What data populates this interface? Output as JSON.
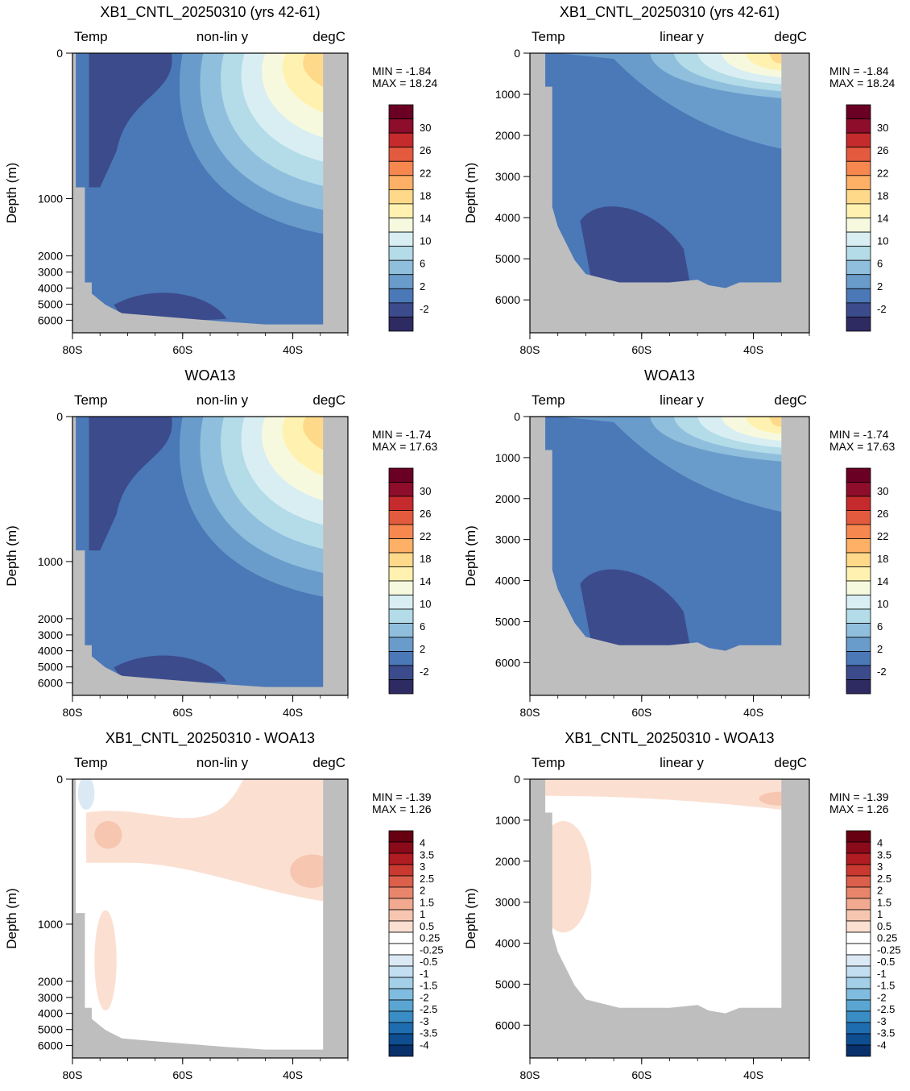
{
  "layout_note": "",
  "colors": {
    "land": "#bebebe",
    "temp_ramp": [
      "#2e2a62",
      "#3c4b8c",
      "#4b78b7",
      "#6a9ccb",
      "#8fbfdc",
      "#b3dbe8",
      "#d8eef2",
      "#f7f9df",
      "#fff2b0",
      "#ffd98a",
      "#fdb066",
      "#f6874f",
      "#e45a3e",
      "#c52b2d",
      "#8e0d2b",
      "#6b0025"
    ],
    "diff_ramp": [
      "#08306b",
      "#0e4d8f",
      "#1f6db1",
      "#3a8cc4",
      "#5aa5d2",
      "#80bce0",
      "#a3cfe8",
      "#c2def0",
      "#dbe9f5",
      "#ffffff",
      "#ffffff",
      "#fbe0d2",
      "#f6c6b0",
      "#f1a98f",
      "#e8866c",
      "#db5f4a",
      "#c9392f",
      "#b01c22",
      "#8a0a1a",
      "#670010"
    ]
  },
  "panels": [
    {
      "title": "XB1_CNTL_20250310 (yrs 42-61)",
      "left_label": "Temp",
      "center_label": "non-lin y",
      "right_label": "degC",
      "min_text": "MIN = -1.84",
      "max_text": "MAX = 18.24",
      "ylabel": "Depth (m)"
    },
    {
      "title": "XB1_CNTL_20250310 (yrs 42-61)",
      "left_label": "Temp",
      "center_label": "linear y",
      "right_label": "degC",
      "min_text": "MIN = -1.84",
      "max_text": "MAX = 18.24",
      "ylabel": "Depth (m)"
    },
    {
      "title": "WOA13",
      "left_label": "Temp",
      "center_label": "non-lin y",
      "right_label": "degC",
      "min_text": "MIN = -1.74",
      "max_text": "MAX = 17.63",
      "ylabel": "Depth (m)"
    },
    {
      "title": "WOA13",
      "left_label": "Temp",
      "center_label": "linear y",
      "right_label": "degC",
      "min_text": "MIN = -1.74",
      "max_text": "MAX = 17.63",
      "ylabel": "Depth (m)"
    },
    {
      "title": "XB1_CNTL_20250310 - WOA13",
      "left_label": "Temp",
      "center_label": "non-lin y",
      "right_label": "degC",
      "min_text": "MIN = -1.39",
      "max_text": "MAX =  1.26",
      "ylabel": "Depth (m)"
    },
    {
      "title": "XB1_CNTL_20250310 - WOA13",
      "left_label": "Temp",
      "center_label": "linear y",
      "right_label": "degC",
      "min_text": "MIN = -1.39",
      "max_text": "MAX =  1.26",
      "ylabel": "Depth (m)"
    }
  ],
  "chart_data": [
    {
      "type": "heatmap",
      "panel": 0,
      "variable": "Temp",
      "units": "degC",
      "x_ticks": [
        "80S",
        "60S",
        "40S"
      ],
      "y_ticks": [
        "0",
        "1000",
        "2000",
        "3000",
        "4000",
        "5000",
        "6000"
      ],
      "xlim": [
        -80,
        -30
      ],
      "ylim": [
        6500,
        0
      ],
      "y_scale": "non-linear",
      "colorbar": "temp",
      "min": -1.84,
      "max": 18.24
    },
    {
      "type": "heatmap",
      "panel": 1,
      "variable": "Temp",
      "units": "degC",
      "x_ticks": [
        "80S",
        "60S",
        "40S"
      ],
      "y_ticks": [
        "0",
        "1000",
        "2000",
        "3000",
        "4000",
        "5000",
        "6000"
      ],
      "xlim": [
        -80,
        -30
      ],
      "ylim": [
        6800,
        0
      ],
      "y_scale": "linear",
      "colorbar": "temp",
      "min": -1.84,
      "max": 18.24
    },
    {
      "type": "heatmap",
      "panel": 2,
      "variable": "Temp",
      "units": "degC",
      "x_ticks": [
        "80S",
        "60S",
        "40S"
      ],
      "y_ticks": [
        "0",
        "1000",
        "2000",
        "3000",
        "4000",
        "5000",
        "6000"
      ],
      "xlim": [
        -80,
        -30
      ],
      "ylim": [
        6500,
        0
      ],
      "y_scale": "non-linear",
      "colorbar": "temp",
      "min": -1.74,
      "max": 17.63
    },
    {
      "type": "heatmap",
      "panel": 3,
      "variable": "Temp",
      "units": "degC",
      "x_ticks": [
        "80S",
        "60S",
        "40S"
      ],
      "y_ticks": [
        "0",
        "1000",
        "2000",
        "3000",
        "4000",
        "5000",
        "6000"
      ],
      "xlim": [
        -80,
        -30
      ],
      "ylim": [
        6800,
        0
      ],
      "y_scale": "linear",
      "colorbar": "temp",
      "min": -1.74,
      "max": 17.63
    },
    {
      "type": "heatmap",
      "panel": 4,
      "variable": "Temp",
      "units": "degC",
      "x_ticks": [
        "80S",
        "60S",
        "40S"
      ],
      "y_ticks": [
        "0",
        "1000",
        "2000",
        "3000",
        "4000",
        "5000",
        "6000"
      ],
      "xlim": [
        -80,
        -30
      ],
      "ylim": [
        6500,
        0
      ],
      "y_scale": "non-linear",
      "colorbar": "diff",
      "min": -1.39,
      "max": 1.26
    },
    {
      "type": "heatmap",
      "panel": 5,
      "variable": "Temp",
      "units": "degC",
      "x_ticks": [
        "80S",
        "60S",
        "40S"
      ],
      "y_ticks": [
        "0",
        "1000",
        "2000",
        "3000",
        "4000",
        "5000",
        "6000"
      ],
      "xlim": [
        -80,
        -30
      ],
      "ylim": [
        6800,
        0
      ],
      "y_scale": "linear",
      "colorbar": "diff",
      "min": -1.39,
      "max": 1.26
    }
  ],
  "colorbars": {
    "temp_labels": [
      "30",
      "26",
      "22",
      "18",
      "14",
      "10",
      "6",
      "2",
      "-2"
    ],
    "diff_labels": [
      "4",
      "3.5",
      "3",
      "2.5",
      "2",
      "1.5",
      "1",
      "0.5",
      "0.25",
      "-0.25",
      "-0.5",
      "-1",
      "-1.5",
      "-2",
      "-2.5",
      "-3",
      "-3.5",
      "-4"
    ]
  }
}
